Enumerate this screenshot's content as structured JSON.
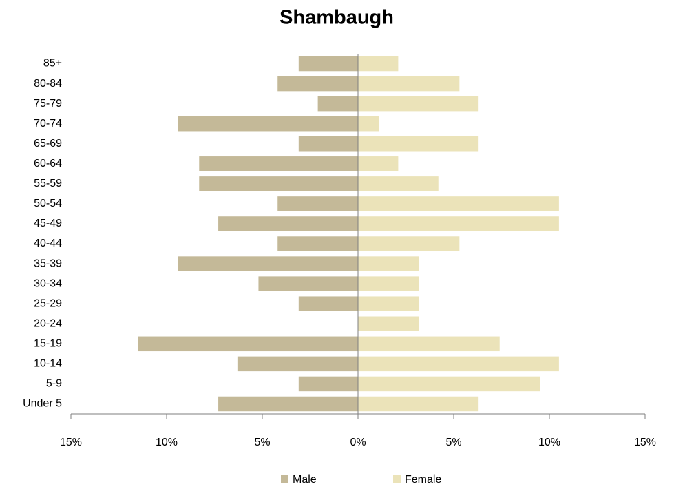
{
  "chart_data": {
    "type": "population_pyramid",
    "title": "Shambaugh",
    "categories": [
      "85+",
      "80-84",
      "75-79",
      "70-74",
      "65-69",
      "60-64",
      "55-59",
      "50-54",
      "45-49",
      "40-44",
      "35-39",
      "30-34",
      "25-29",
      "20-24",
      "15-19",
      "10-14",
      "5-9",
      "Under 5"
    ],
    "series": [
      {
        "name": "Male",
        "color": "#c4b998",
        "values": [
          -3.1,
          -4.2,
          -2.1,
          -9.4,
          -3.1,
          -8.3,
          -8.3,
          -4.2,
          -7.3,
          -4.2,
          -9.4,
          -5.2,
          -3.1,
          0,
          -11.5,
          -6.3,
          -3.1,
          -7.3
        ]
      },
      {
        "name": "Female",
        "color": "#ebe3b9",
        "values": [
          2.1,
          5.3,
          6.3,
          1.1,
          6.3,
          2.1,
          4.2,
          10.5,
          10.5,
          5.3,
          3.2,
          3.2,
          3.2,
          3.2,
          7.4,
          10.5,
          9.5,
          6.3
        ]
      }
    ],
    "xlim": [
      -15,
      15
    ],
    "xticks": [
      {
        "value": -15,
        "label": "15%"
      },
      {
        "value": -10,
        "label": "10%"
      },
      {
        "value": -5,
        "label": "5%"
      },
      {
        "value": 0,
        "label": "0%"
      },
      {
        "value": 5,
        "label": "5%"
      },
      {
        "value": 10,
        "label": "10%"
      },
      {
        "value": 15,
        "label": "15%"
      }
    ],
    "legend": "bottom"
  }
}
